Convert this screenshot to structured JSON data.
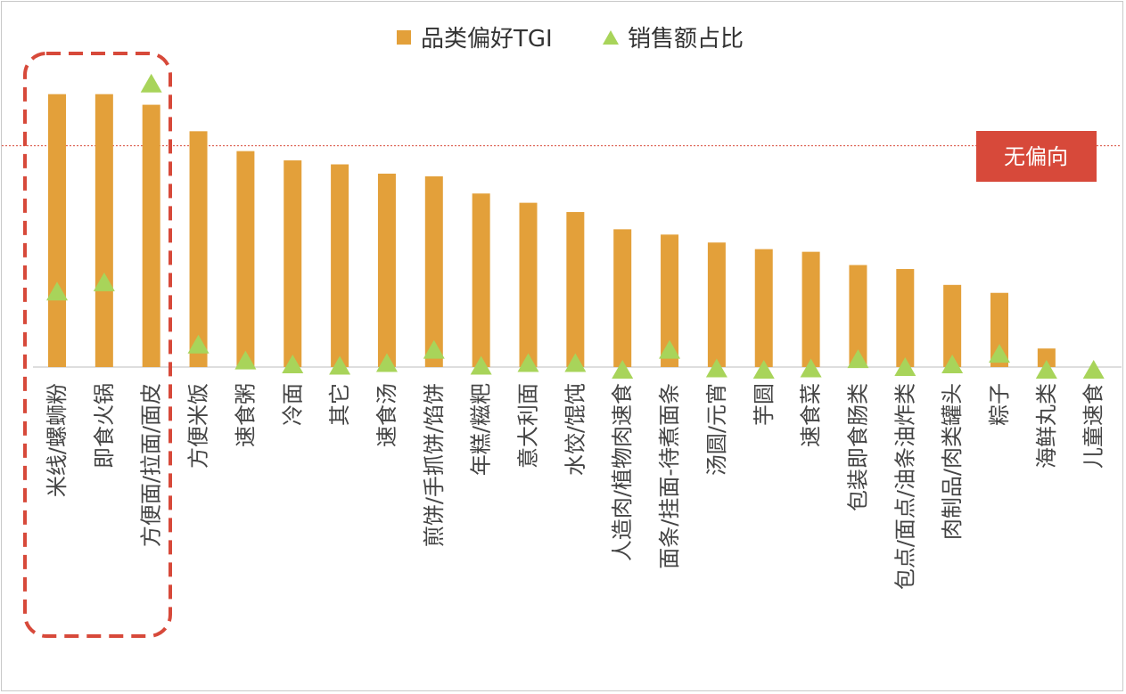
{
  "chart_data": {
    "type": "bar",
    "categories": [
      "米线/螺蛳粉",
      "即食火锅",
      "方便面/拉面/面皮",
      "方便米饭",
      "速食粥",
      "冷面",
      "其它",
      "速食汤",
      "煎饼/手抓饼/馅饼",
      "年糕/糍粑",
      "意大利面",
      "水饺/馄饨",
      "人造肉/植物肉速食",
      "面条/挂面-待煮面条",
      "汤圆/元宵",
      "芋圆",
      "速食菜",
      "包装即食肠类",
      "包点/面点/油条油炸类",
      "肉制品/肉类罐头",
      "粽子",
      "海鲜丸类",
      "儿童速食"
    ],
    "series": [
      {
        "name": "品类偏好TGI",
        "type": "bar",
        "color": "#e3a03a",
        "values": [
          206,
          206,
          198,
          178,
          163,
          156,
          153,
          146,
          144,
          131,
          124,
          117,
          104,
          100,
          94,
          89,
          87,
          77,
          74,
          62,
          56,
          14,
          0
        ]
      },
      {
        "name": "销售额占比",
        "type": "marker-triangle",
        "color": "#a8d45a",
        "values": [
          57,
          64,
          214,
          17,
          5,
          2,
          1,
          3,
          13,
          1,
          3,
          3,
          -2,
          13,
          -1,
          -2,
          -1,
          6,
          0,
          2,
          10,
          -2,
          -2
        ]
      }
    ],
    "reference_line": {
      "value": 167,
      "label": "无偏向",
      "color": "#d7493a"
    },
    "ylim": [
      0,
      230
    ],
    "grid": false,
    "legend_position": "top-center",
    "highlight_group": {
      "categories": [
        "米线/螺蛳粉",
        "即食火锅",
        "方便面/拉面/面皮"
      ],
      "color": "#d7493a"
    }
  }
}
